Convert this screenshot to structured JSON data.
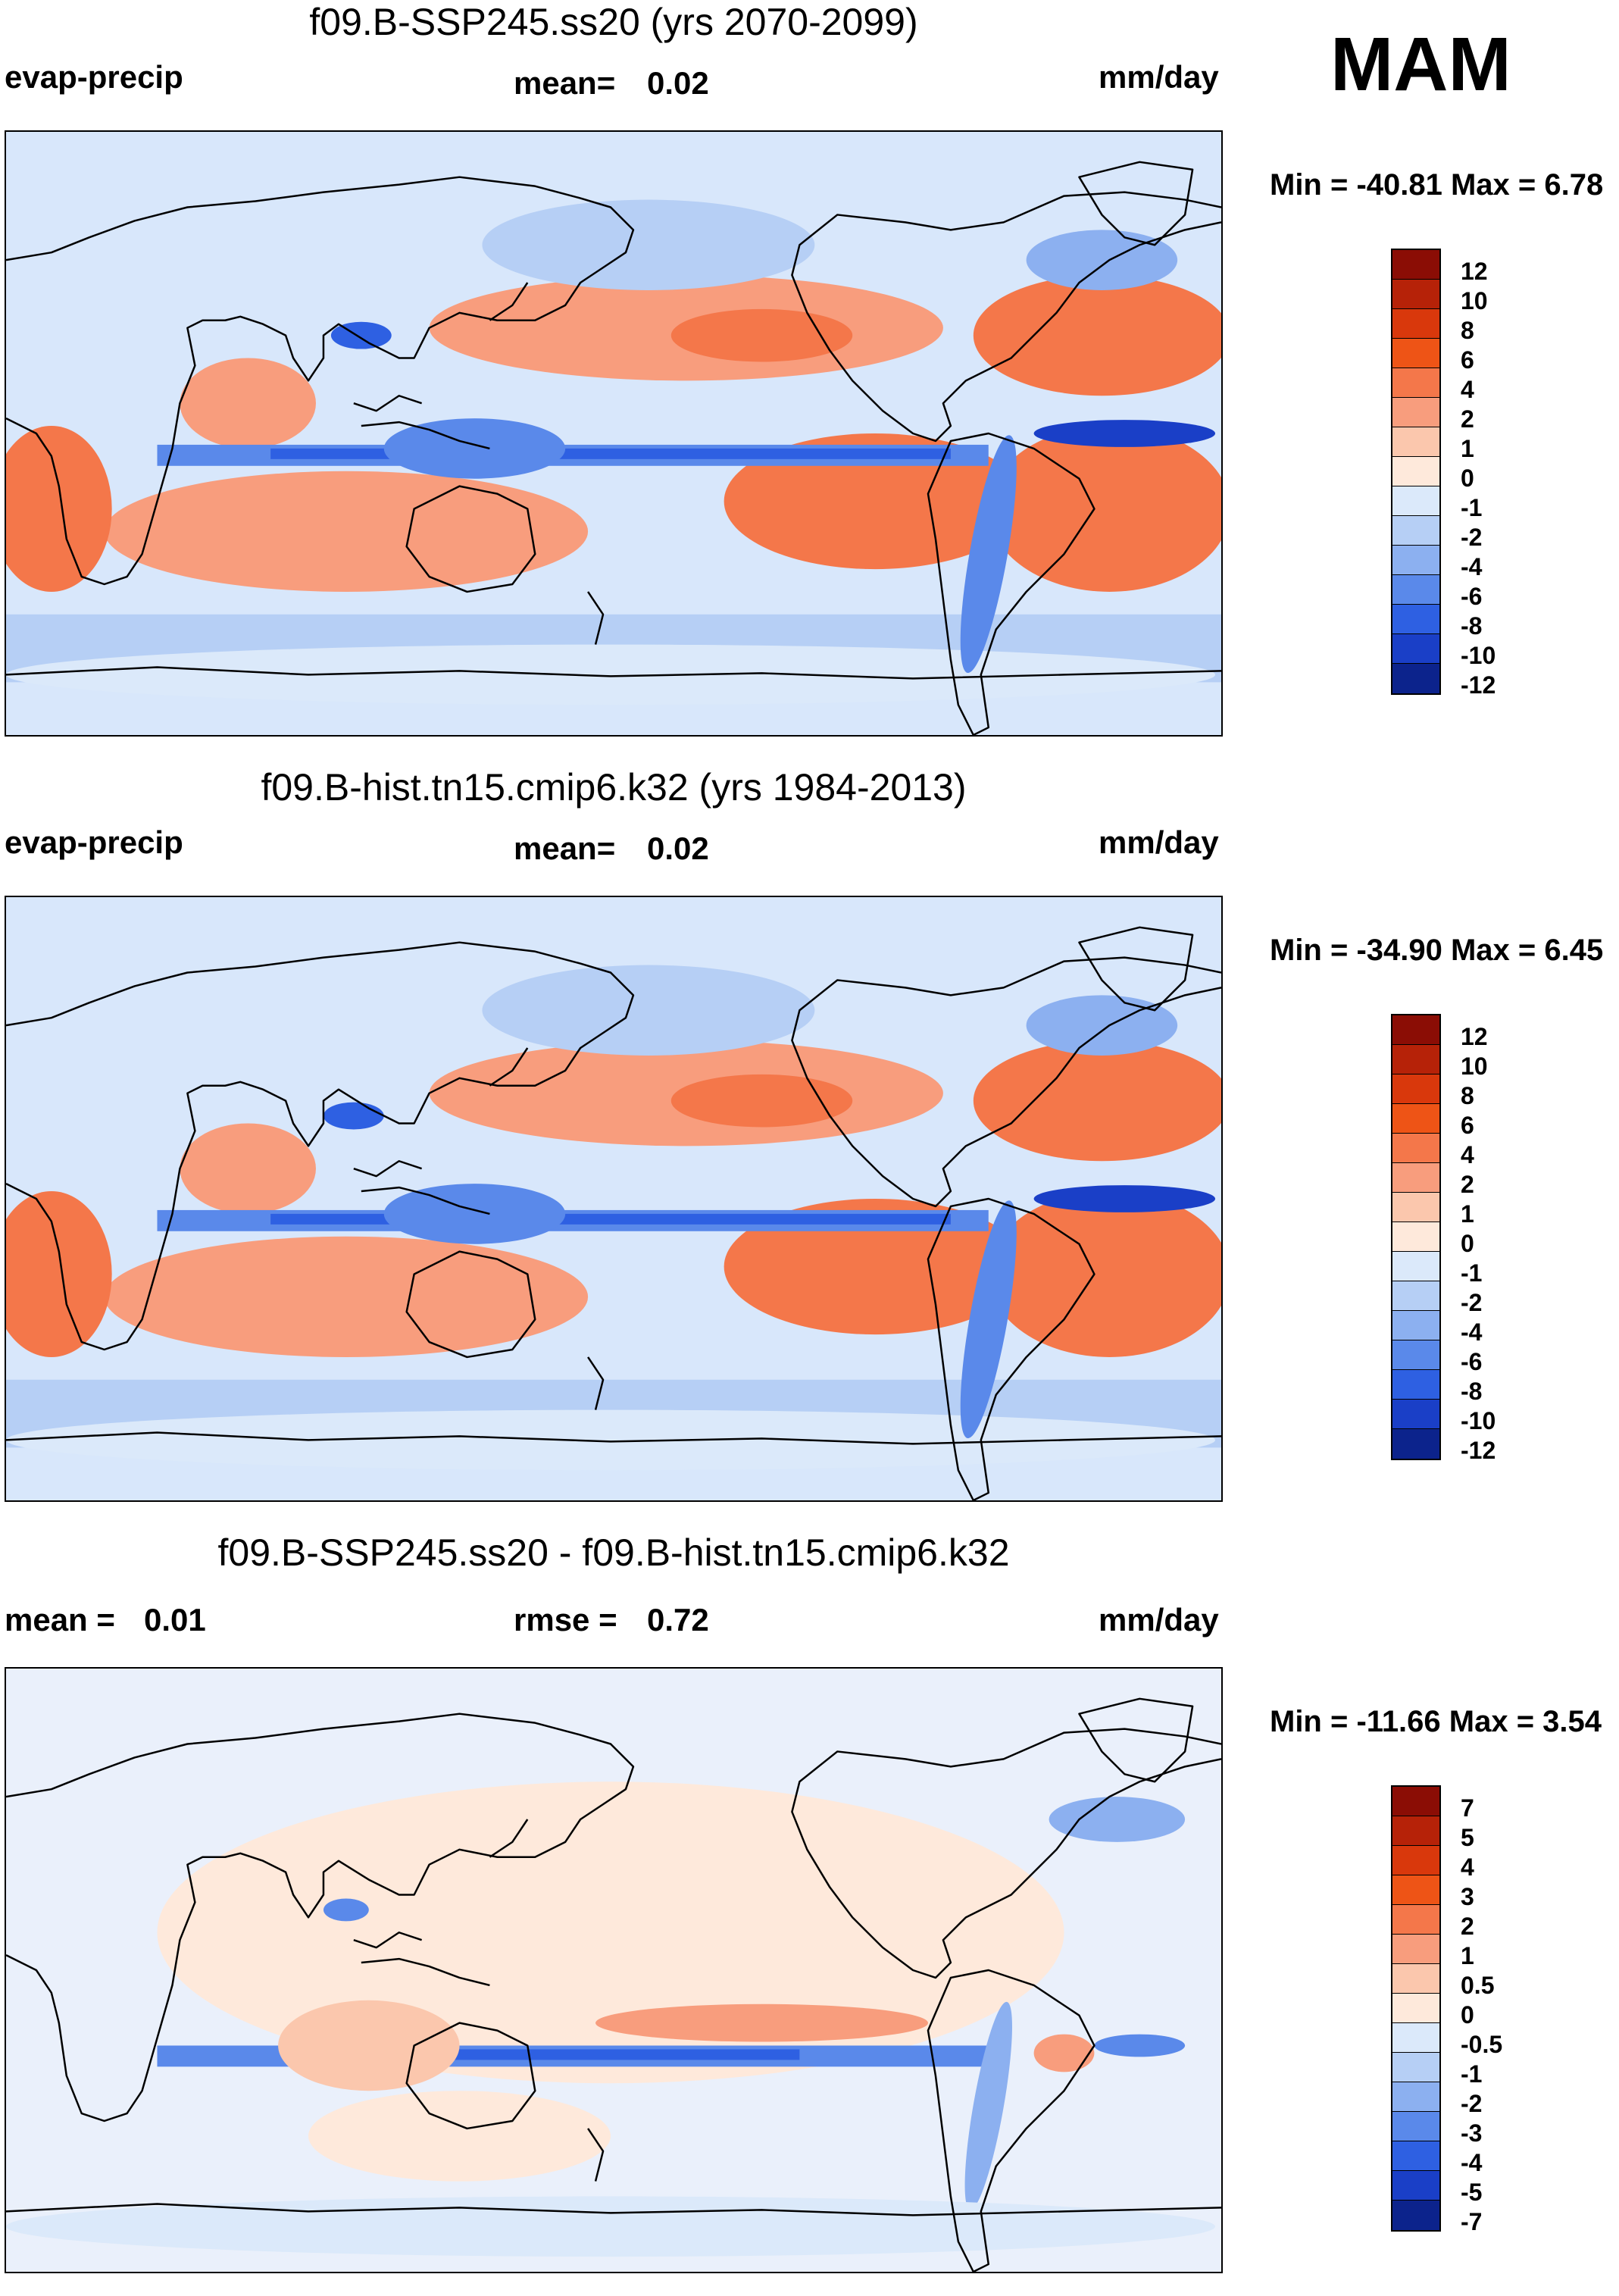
{
  "season": "MAM",
  "panels": [
    {
      "title": "f09.B-SSP245.ss20 (yrs 2070-2099)",
      "left_label": "evap-precip",
      "mean_label": "mean=",
      "mean_value": "0.02",
      "units": "mm/day",
      "minmax": "Min = -40.81 Max =   6.78",
      "colorbar_labels": [
        "12",
        "10",
        "8",
        "6",
        "4",
        "2",
        "1",
        "0",
        "-1",
        "-2",
        "-4",
        "-6",
        "-8",
        "-10",
        "-12"
      ],
      "colorbar_colors": [
        "#8b0d05",
        "#b62208",
        "#d9380c",
        "#ee5416",
        "#f4774a",
        "#f89d7d",
        "#fbc7ad",
        "#fee9db",
        "#dbe9fa",
        "#b6cff5",
        "#8cb0f0",
        "#5a89ea",
        "#2e60e2",
        "#1a3fc7",
        "#0c238c"
      ],
      "field": "fut"
    },
    {
      "title": "f09.B-hist.tn15.cmip6.k32 (yrs 1984-2013)",
      "left_label": "evap-precip",
      "mean_label": "mean=",
      "mean_value": "0.02",
      "units": "mm/day",
      "minmax": "Min = -34.90 Max =   6.45",
      "colorbar_labels": [
        "12",
        "10",
        "8",
        "6",
        "4",
        "2",
        "1",
        "0",
        "-1",
        "-2",
        "-4",
        "-6",
        "-8",
        "-10",
        "-12"
      ],
      "colorbar_colors": [
        "#8b0d05",
        "#b62208",
        "#d9380c",
        "#ee5416",
        "#f4774a",
        "#f89d7d",
        "#fbc7ad",
        "#fee9db",
        "#dbe9fa",
        "#b6cff5",
        "#8cb0f0",
        "#5a89ea",
        "#2e60e2",
        "#1a3fc7",
        "#0c238c"
      ],
      "field": "hist"
    },
    {
      "title": "f09.B-SSP245.ss20 - f09.B-hist.tn15.cmip6.k32",
      "left_label": "mean =",
      "left_value": "0.01",
      "mean_label": "rmse =",
      "mean_value": "0.72",
      "units": "mm/day",
      "minmax": "Min = -11.66 Max =   3.54",
      "colorbar_labels": [
        "7",
        "5",
        "4",
        "3",
        "2",
        "1",
        "0.5",
        "0",
        "-0.5",
        "-1",
        "-2",
        "-3",
        "-4",
        "-5",
        "-7"
      ],
      "colorbar_colors": [
        "#8b0d05",
        "#b62208",
        "#d9380c",
        "#ee5416",
        "#f4774a",
        "#f89d7d",
        "#fbc7ad",
        "#fee9db",
        "#dbe9fa",
        "#b6cff5",
        "#8cb0f0",
        "#5a89ea",
        "#2e60e2",
        "#1a3fc7",
        "#0c238c"
      ],
      "field": "diff"
    }
  ],
  "colors": {
    "ocean_base": "#d8e7fb",
    "coast": "#000000"
  }
}
